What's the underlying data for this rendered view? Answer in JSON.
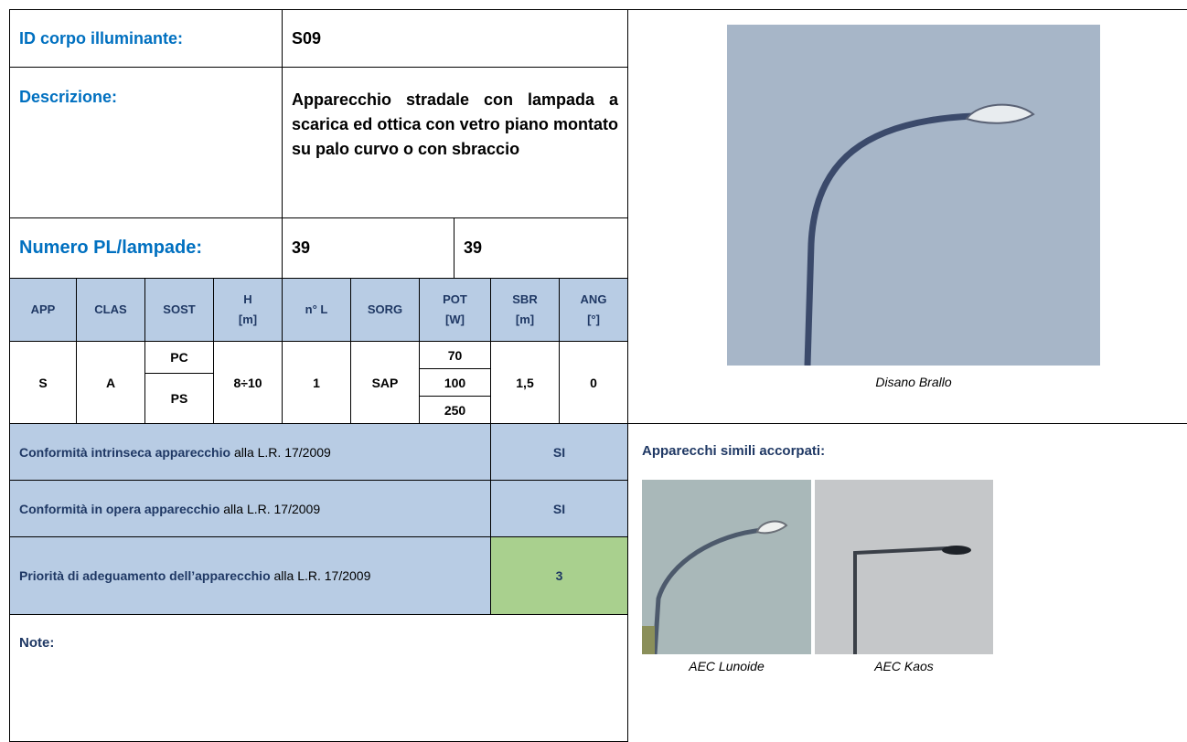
{
  "header": {
    "id_label": "ID corpo illuminante:",
    "id_value": "S09",
    "description_label": "Descrizione:",
    "description": "Apparecchio stradale con lampada a scarica ed ottica con vetro piano montato su palo curvo o con sbraccio",
    "number_label": "Numero PL/lampade:",
    "number_pl": "39",
    "number_lamps": "39"
  },
  "table": {
    "columns": [
      "APP",
      "CLAS",
      "SOST",
      "H\n[m]",
      "n° L",
      "SORG",
      "POT\n[W]",
      "SBR\n[m]",
      "ANG\n[°]"
    ],
    "row": {
      "app": "S",
      "clas": "A",
      "sost": [
        "PC",
        "PS"
      ],
      "h": "8÷10",
      "n_l": "1",
      "sorg": "SAP",
      "pot": [
        "70",
        "100",
        "250"
      ],
      "sbr": "1,5",
      "ang": "0"
    }
  },
  "compliance": [
    {
      "label_bold": "Conformità intrinseca apparecchio",
      "label_rest": " alla L.R. 17/2009",
      "value": "SI"
    },
    {
      "label_bold": "Conformità in opera apparecchio",
      "label_rest": " alla L.R. 17/2009",
      "value": "SI"
    },
    {
      "label_bold": "Priorità di adeguamento dell’apparecchio",
      "label_rest": " alla L.R. 17/2009",
      "value": "3"
    }
  ],
  "note_label": "Note:",
  "photo": {
    "caption": "Disano Brallo"
  },
  "similar": {
    "title": "Apparecchi simili accorpati:",
    "captions": [
      "AEC Lunoide",
      "AEC Kaos"
    ]
  }
}
